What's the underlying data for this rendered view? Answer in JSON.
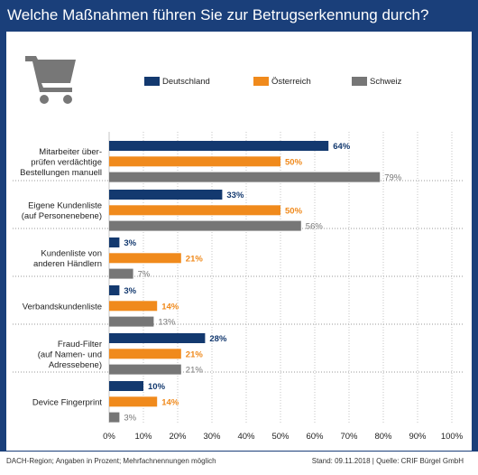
{
  "title": "Welche Maßnahmen führen Sie zur Betrugserkennung durch?",
  "footer": {
    "left": "DACH-Region; Angaben in Prozent; Mehrfachnennungen möglich",
    "right": "Stand: 09.11.2018 | Quelle: CRIF Bürgel GmbH"
  },
  "icons": {
    "cart": "shopping-cart-icon"
  },
  "colors": {
    "frame": "#1a3f7a",
    "deutschland": "#13396f",
    "oesterreich": "#f08a1c",
    "schweiz": "#767676"
  },
  "chart_data": {
    "type": "bar",
    "orientation": "horizontal",
    "categories": [
      "Mitarbeiter über-\nprüfen verdächtige\nBestellungen manuell",
      "Eigene Kundenliste\n(auf Personenebene)",
      "Kundenliste von\nanderen Händlern",
      "Verbandskundenliste",
      "Fraud-Filter\n(auf Namen- und\nAdressebene)",
      "Device Fingerprint"
    ],
    "series": [
      {
        "name": "Deutschland",
        "color": "#13396f",
        "values": [
          64,
          33,
          3,
          3,
          28,
          10
        ]
      },
      {
        "name": "Österreich",
        "color": "#f08a1c",
        "values": [
          50,
          50,
          21,
          14,
          21,
          14
        ]
      },
      {
        "name": "Schweiz",
        "color": "#767676",
        "values": [
          79,
          56,
          7,
          13,
          21,
          3
        ]
      }
    ],
    "value_labels": [
      [
        "64%",
        "33%",
        "3%",
        "3%",
        "28%",
        "10%"
      ],
      [
        "50%",
        "50%",
        "21%",
        "14%",
        "21%",
        "14%"
      ],
      [
        "79%",
        "56%",
        "7%",
        "13%",
        "21%",
        "3%"
      ]
    ],
    "xticks": [
      "0%",
      "10%",
      "20%",
      "30%",
      "40%",
      "50%",
      "60%",
      "70%",
      "80%",
      "90%",
      "100%"
    ],
    "xlim": [
      0,
      100
    ],
    "grid": true,
    "legend": "top"
  }
}
